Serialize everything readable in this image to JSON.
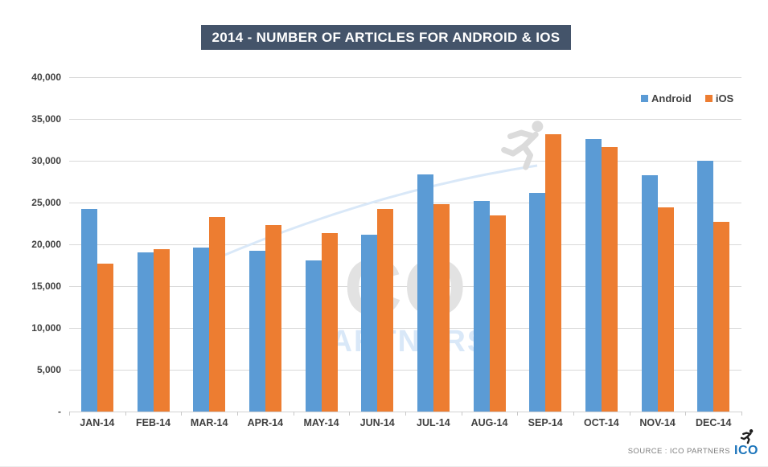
{
  "title": "2014 - NUMBER OF ARTICLES FOR ANDROID & IOS",
  "colors": {
    "android_blue": "#5B9BD5",
    "ios_orange": "#ED7D31",
    "title_background": "#44546A",
    "gridline": "#D9D9D9",
    "axis_text": "#404040",
    "logo_blue": "#1C75BB",
    "source_text": "#7F7F7F",
    "watermark_gray": "#E2E2E2",
    "watermark_blue": "#D9E8F8"
  },
  "legend": {
    "items": [
      {
        "label": "Android",
        "color": "#5B9BD5"
      },
      {
        "label": "iOS",
        "color": "#ED7D31"
      }
    ]
  },
  "watermark": {
    "big_text": "ICO",
    "sub_text": "PARTNERS",
    "runner_icon": "running-person-icon"
  },
  "source": {
    "label": "SOURCE : ICO PARTNERS",
    "logo_text": "ICO",
    "runner_icon": "running-person-icon"
  },
  "chart_data": {
    "type": "bar",
    "title": "2014 - NUMBER OF ARTICLES FOR ANDROID & IOS",
    "categories": [
      "JAN-14",
      "FEB-14",
      "MAR-14",
      "APR-14",
      "MAY-14",
      "JUN-14",
      "JUL-14",
      "AUG-14",
      "SEP-14",
      "OCT-14",
      "NOV-14",
      "DEC-14"
    ],
    "series": [
      {
        "name": "Android",
        "color": "#5B9BD5",
        "values": [
          24200,
          19000,
          19600,
          19200,
          18100,
          21200,
          28400,
          25200,
          26200,
          32600,
          28300,
          30000
        ]
      },
      {
        "name": "iOS",
        "color": "#ED7D31",
        "values": [
          17700,
          19400,
          23300,
          22300,
          21300,
          24200,
          24800,
          23500,
          33200,
          31600,
          24400,
          22700
        ]
      }
    ],
    "xlabel": "",
    "ylabel": "",
    "ylim": [
      0,
      40000
    ],
    "ytick_step": 5000,
    "ytick_labels": [
      "-",
      "5,000",
      "10,000",
      "15,000",
      "20,000",
      "25,000",
      "30,000",
      "35,000",
      "40,000"
    ],
    "grid": true,
    "legend_position": "top-right"
  }
}
